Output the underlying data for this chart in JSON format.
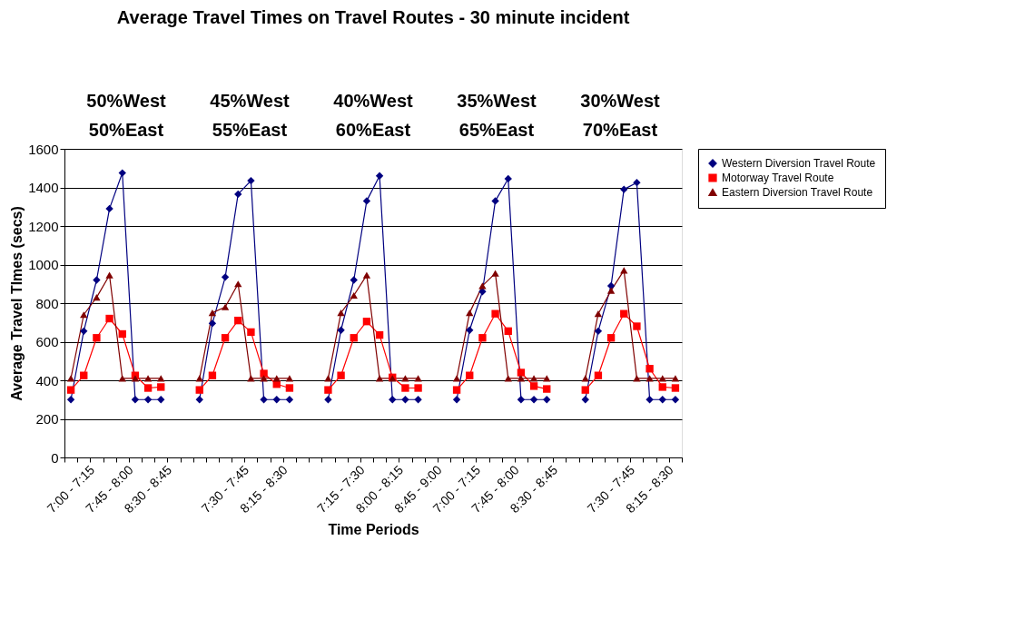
{
  "chart_data": {
    "type": "line",
    "title": "Average Travel Times on Travel Routes - 30 minute incident",
    "annotations": [
      "50%West",
      "45%West",
      "40%West",
      "35%West",
      "30%West",
      "50%East",
      "55%East",
      "60%East",
      "65%East",
      "70%East"
    ],
    "xlabel": "Time Periods",
    "ylabel": "Average Travel TImes (secs)",
    "categories": [
      "7:00 - 7:15",
      null,
      null,
      "7:45 - 8:00",
      null,
      null,
      "8:30 - 8:45",
      null,
      null,
      null,
      null,
      null,
      "7:30 - 7:45",
      null,
      null,
      "8:15 - 8:30",
      null,
      null,
      null,
      null,
      null,
      "7:15 - 7:30",
      null,
      null,
      "8:00 - 8:15",
      null,
      null,
      "8:45 - 9:00",
      null,
      null,
      "7:00 - 7:15",
      null,
      null,
      "7:45 - 8:00",
      null,
      null,
      "8:30 - 8:45",
      null,
      null,
      null,
      null,
      null,
      "7:30 - 7:45",
      null,
      null,
      "8:15 - 8:30",
      null,
      null
    ],
    "series": [
      {
        "name": "Western Diversion Travel Route",
        "color": "#000080",
        "marker": "diamond",
        "values": [
          300,
          655,
          920,
          1290,
          1475,
          300,
          300,
          300,
          null,
          null,
          300,
          695,
          935,
          1365,
          1435,
          300,
          300,
          300,
          null,
          null,
          300,
          660,
          920,
          1330,
          1460,
          300,
          300,
          300,
          null,
          null,
          300,
          660,
          860,
          1330,
          1445,
          300,
          300,
          300,
          null,
          null,
          300,
          655,
          890,
          1390,
          1425,
          300,
          300,
          300
        ]
      },
      {
        "name": "Motorway Travel Route",
        "color": "#ff0000",
        "marker": "square",
        "values": [
          350,
          425,
          620,
          720,
          640,
          425,
          360,
          365,
          null,
          null,
          350,
          425,
          620,
          710,
          650,
          435,
          380,
          360,
          null,
          null,
          350,
          425,
          620,
          705,
          635,
          415,
          360,
          360,
          null,
          null,
          350,
          425,
          620,
          745,
          655,
          440,
          370,
          355,
          null,
          null,
          350,
          425,
          620,
          745,
          680,
          460,
          365,
          360
        ]
      },
      {
        "name": "Eastern Diversion Travel Route",
        "color": "#800000",
        "marker": "triangle",
        "values": [
          410,
          740,
          830,
          945,
          410,
          410,
          410,
          410,
          null,
          null,
          410,
          750,
          780,
          900,
          410,
          410,
          410,
          410,
          null,
          null,
          410,
          750,
          840,
          945,
          410,
          410,
          410,
          410,
          null,
          null,
          410,
          750,
          890,
          955,
          410,
          410,
          410,
          410,
          null,
          null,
          410,
          745,
          865,
          970,
          410,
          410,
          410,
          410
        ]
      }
    ],
    "ylim": [
      0,
      1600
    ],
    "yticks": [
      0,
      200,
      400,
      600,
      800,
      1000,
      1200,
      1400,
      1600
    ],
    "grid": "y",
    "legend": "right",
    "line_style": "solid"
  }
}
